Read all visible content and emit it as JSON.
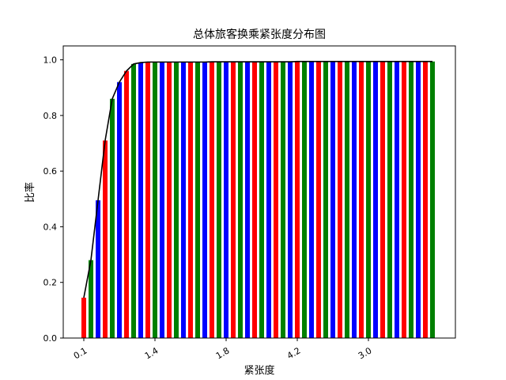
{
  "chart_data": {
    "type": "bar",
    "title": "总体旅客换乘紧张度分布图",
    "xlabel": "紧张度",
    "ylabel": "比率",
    "ylim": [
      0,
      1.05
    ],
    "yticks": [
      "0.0",
      "0.2",
      "0.4",
      "0.6",
      "0.8",
      "1.0"
    ],
    "xtick_labels": [
      {
        "label": "0.1",
        "at_bar": 0
      },
      {
        "label": "1.4",
        "at_bar": 10
      },
      {
        "label": "1.8",
        "at_bar": 20
      },
      {
        "label": "4.2",
        "at_bar": 30
      },
      {
        "label": "3.0",
        "at_bar": 40
      }
    ],
    "bar_colors": [
      "#ff0000",
      "#008000",
      "#0000ff"
    ],
    "line_color": "#000000",
    "grid": false,
    "legend": "none",
    "values": [
      0.145,
      0.28,
      0.495,
      0.71,
      0.86,
      0.92,
      0.96,
      0.985,
      0.99,
      0.992,
      0.992,
      0.992,
      0.992,
      0.992,
      0.992,
      0.992,
      0.992,
      0.992,
      0.993,
      0.993,
      0.993,
      0.993,
      0.993,
      0.993,
      0.993,
      0.993,
      0.993,
      0.993,
      0.993,
      0.993,
      0.994,
      0.994,
      0.994,
      0.994,
      0.994,
      0.994,
      0.994,
      0.994,
      0.994,
      0.994,
      0.994,
      0.994,
      0.994,
      0.994,
      0.994,
      0.994,
      0.994,
      0.994,
      0.994,
      0.994
    ]
  }
}
